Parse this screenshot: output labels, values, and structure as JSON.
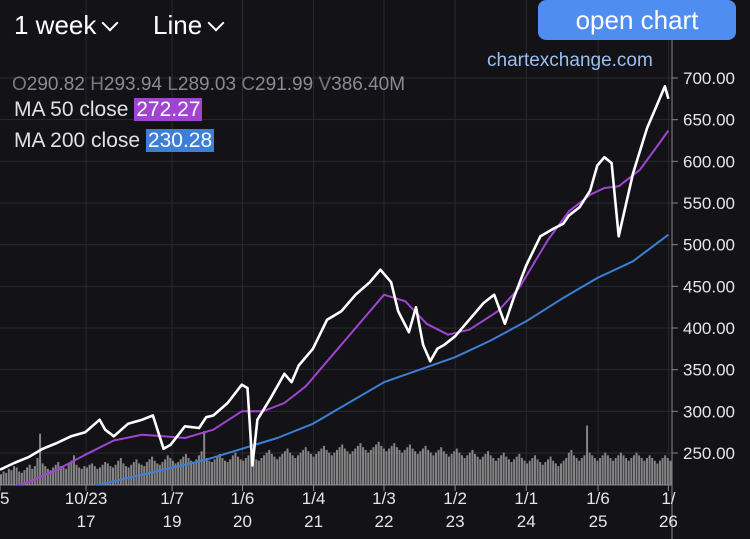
{
  "toolbar": {
    "interval_label": "1 week",
    "type_label": "Line",
    "open_chart_label": "open chart",
    "site": "chartexchange.com"
  },
  "ohlc": {
    "o": "290.82",
    "h": "293.94",
    "l": "289.03",
    "c": "291.99",
    "v": "386.40M"
  },
  "legend": {
    "ma50_label": "MA 50 close",
    "ma50_value": "272.27",
    "ma200_label": "MA 200 close",
    "ma200_value": "230.28"
  },
  "colors": {
    "price": "#ffffff",
    "ma50": "#a144d0",
    "ma200": "#3d7fd6",
    "volume": "#9a9a9a",
    "ma50_badge": "#a144d0",
    "ma200_badge": "#3d7fd6"
  },
  "chart_data": {
    "type": "line",
    "ylim": [
      200,
      720
    ],
    "yticks": [
      250,
      300,
      350,
      400,
      450,
      500,
      550,
      600,
      650,
      700
    ],
    "ytick_labels": [
      "250.00",
      "300.00",
      "350.00",
      "400.00",
      "450.00",
      "500.00",
      "550.00",
      "600.00",
      "650.00",
      "700.00"
    ],
    "xlim": [
      2016.6,
      2026.05
    ],
    "x_ticks": [
      {
        "x": 2016.6,
        "top": "5",
        "bottom": ""
      },
      {
        "x": 2017.81,
        "top": "10/23",
        "bottom": "17"
      },
      {
        "x": 2019.02,
        "top": "1/7",
        "bottom": "19"
      },
      {
        "x": 2020.01,
        "top": "1/6",
        "bottom": "20"
      },
      {
        "x": 2021.01,
        "top": "1/4",
        "bottom": "21"
      },
      {
        "x": 2022.0,
        "top": "1/3",
        "bottom": "22"
      },
      {
        "x": 2023.0,
        "top": "1/2",
        "bottom": "23"
      },
      {
        "x": 2024.0,
        "top": "1/1",
        "bottom": "24"
      },
      {
        "x": 2025.01,
        "top": "1/6",
        "bottom": "25"
      },
      {
        "x": 2026.0,
        "top": "1/",
        "bottom": "26"
      }
    ],
    "series": [
      {
        "x": [
          2016.6,
          2016.8,
          2017.0,
          2017.2,
          2017.4,
          2017.6,
          2017.8,
          2018.0,
          2018.08,
          2018.2,
          2018.4,
          2018.6,
          2018.75,
          2018.9,
          2019.0,
          2019.2,
          2019.4,
          2019.5,
          2019.6,
          2019.8,
          2020.0,
          2020.08,
          2020.15,
          2020.22,
          2020.4,
          2020.6,
          2020.7,
          2020.8,
          2021.0,
          2021.2,
          2021.4,
          2021.6,
          2021.8,
          2021.95,
          2022.1,
          2022.2,
          2022.35,
          2022.45,
          2022.55,
          2022.65,
          2022.75,
          2022.85,
          2023.0,
          2023.2,
          2023.4,
          2023.55,
          2023.7,
          2023.82,
          2024.0,
          2024.2,
          2024.4,
          2024.52,
          2024.6,
          2024.75,
          2024.9,
          2025.0,
          2025.1,
          2025.2,
          2025.3,
          2025.5,
          2025.7,
          2025.85,
          2025.95,
          2026.0
        ],
        "y": [
          230,
          238,
          245,
          255,
          262,
          270,
          275,
          290,
          278,
          270,
          285,
          290,
          295,
          255,
          260,
          282,
          280,
          293,
          295,
          310,
          332,
          328,
          235,
          290,
          315,
          345,
          335,
          355,
          375,
          410,
          420,
          440,
          455,
          470,
          455,
          420,
          395,
          425,
          380,
          360,
          375,
          380,
          390,
          410,
          430,
          440,
          405,
          435,
          475,
          510,
          520,
          525,
          535,
          545,
          565,
          595,
          605,
          598,
          510,
          585,
          640,
          670,
          690,
          675
        ]
      },
      {
        "x": [
          2016.6,
          2017.0,
          2017.4,
          2017.8,
          2018.2,
          2018.6,
          2018.9,
          2019.2,
          2019.6,
          2020.0,
          2020.3,
          2020.6,
          2020.9,
          2021.2,
          2021.6,
          2022.0,
          2022.3,
          2022.6,
          2022.9,
          2023.2,
          2023.6,
          2023.9,
          2024.3,
          2024.6,
          2024.9,
          2025.1,
          2025.3,
          2025.6,
          2025.9,
          2026.0
        ],
        "y": [
          205,
          215,
          230,
          248,
          265,
          272,
          270,
          268,
          278,
          300,
          300,
          310,
          330,
          360,
          400,
          440,
          432,
          405,
          392,
          398,
          420,
          448,
          505,
          540,
          560,
          568,
          570,
          590,
          625,
          637
        ]
      },
      {
        "x": [
          2016.6,
          2017.0,
          2017.5,
          2018.0,
          2018.5,
          2019.0,
          2019.5,
          2020.0,
          2020.5,
          2021.0,
          2021.5,
          2022.0,
          2022.5,
          2023.0,
          2023.5,
          2024.0,
          2024.5,
          2025.0,
          2025.5,
          2026.0
        ],
        "y": [
          180,
          190,
          202,
          212,
          222,
          232,
          242,
          255,
          268,
          285,
          310,
          335,
          350,
          365,
          385,
          408,
          435,
          460,
          480,
          512
        ]
      },
      {
        "values": [
          8,
          10,
          9,
          12,
          11,
          14,
          13,
          10,
          9,
          11,
          13,
          15,
          12,
          14,
          20,
          38,
          16,
          14,
          12,
          11,
          13,
          15,
          17,
          14,
          13,
          12,
          16,
          18,
          22,
          15,
          13,
          12,
          14,
          13,
          15,
          16,
          14,
          12,
          13,
          15,
          17,
          16,
          14,
          13,
          15,
          18,
          20,
          16,
          14,
          13,
          15,
          17,
          19,
          16,
          15,
          14,
          17,
          19,
          21,
          18,
          16,
          15,
          17,
          19,
          22,
          20,
          18,
          16,
          17,
          19,
          21,
          23,
          20,
          18,
          17,
          19,
          22,
          25,
          40,
          20,
          18,
          17,
          19,
          21,
          23,
          20,
          18,
          17,
          19,
          22,
          24,
          21,
          19,
          18,
          20,
          22,
          24,
          21,
          19,
          18,
          20,
          22,
          24,
          26,
          23,
          21,
          19,
          21,
          23,
          25,
          27,
          24,
          22,
          20,
          22,
          24,
          26,
          28,
          25,
          23,
          21,
          23,
          25,
          27,
          29,
          26,
          24,
          22,
          24,
          26,
          28,
          30,
          27,
          25,
          23,
          25,
          27,
          29,
          31,
          28,
          26,
          24,
          26,
          28,
          30,
          32,
          29,
          27,
          25,
          27,
          29,
          31,
          28,
          26,
          24,
          26,
          28,
          30,
          27,
          25,
          23,
          25,
          27,
          29,
          26,
          24,
          22,
          24,
          26,
          28,
          25,
          23,
          21,
          23,
          25,
          27,
          24,
          22,
          20,
          22,
          24,
          26,
          23,
          21,
          19,
          21,
          23,
          25,
          22,
          20,
          18,
          20,
          22,
          24,
          21,
          19,
          17,
          19,
          21,
          23,
          20,
          18,
          16,
          18,
          20,
          22,
          19,
          17,
          15,
          17,
          19,
          21,
          18,
          16,
          14,
          16,
          18,
          20,
          24,
          26,
          22,
          20,
          18,
          20,
          22,
          44,
          24,
          22,
          20,
          18,
          20,
          22,
          24,
          22,
          20,
          18,
          20,
          22,
          24,
          22,
          20,
          18,
          20,
          22,
          24,
          22,
          20,
          18,
          20,
          22,
          20,
          18,
          16,
          18,
          20,
          22,
          20,
          18
        ]
      }
    ]
  }
}
